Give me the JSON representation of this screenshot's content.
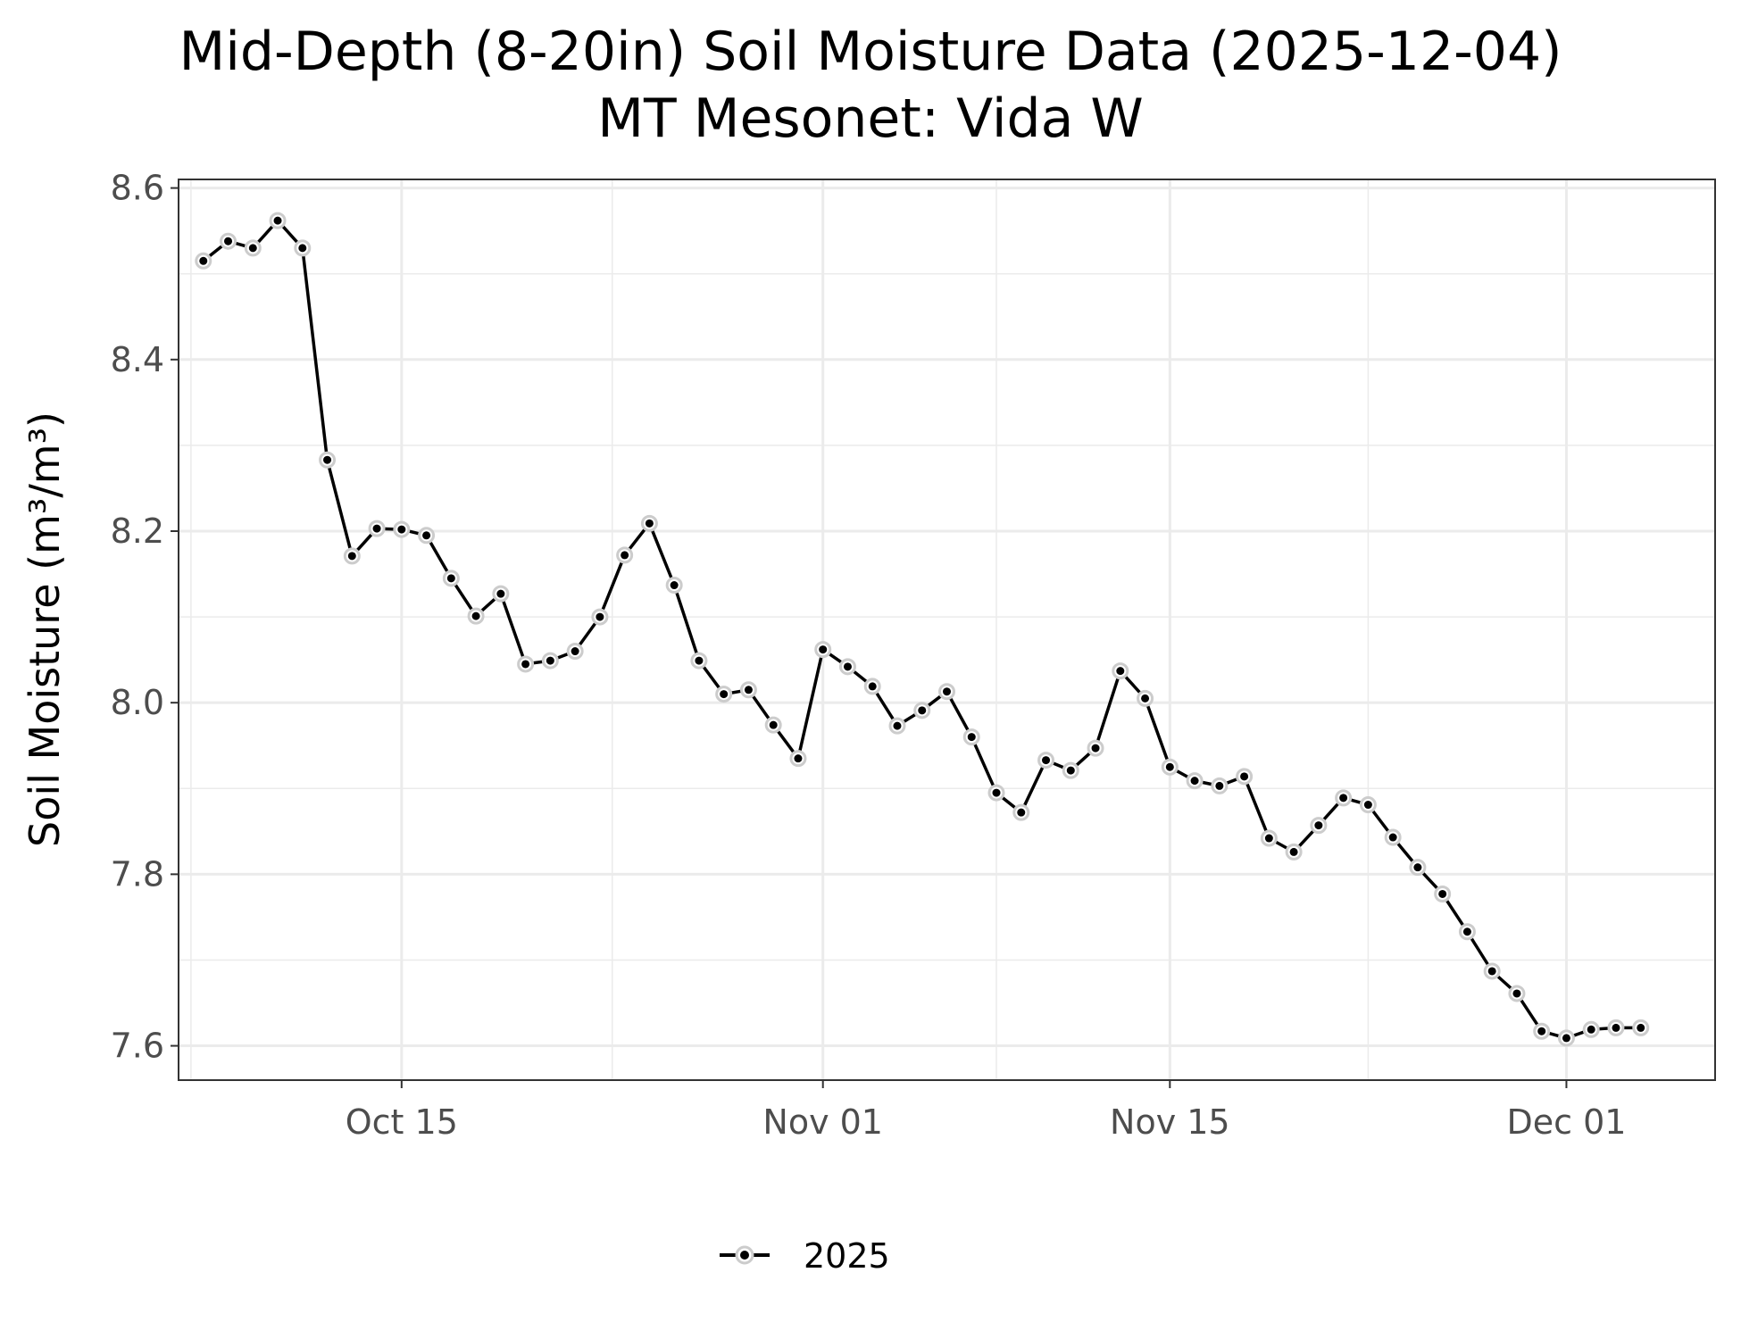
{
  "chart_data": {
    "type": "line",
    "title": "Mid-Depth (8-20in) Soil Moisture Data (2025-12-04)",
    "subtitle": "MT Mesonet: Vida W",
    "xlabel": "",
    "ylabel": "Soil Moisture (m³/m³)",
    "x_range": [
      "2025-10-06",
      "2025-12-07"
    ],
    "ylim": [
      7.56,
      8.61
    ],
    "y_ticks": [
      7.6,
      7.8,
      8.0,
      8.2,
      8.4,
      8.6
    ],
    "y_tick_labels": [
      "7.6",
      "7.8",
      "8.0",
      "8.2",
      "8.4",
      "8.6"
    ],
    "x_ticks": [
      "2025-10-15",
      "2025-11-01",
      "2025-11-15",
      "2025-12-01"
    ],
    "x_tick_labels": [
      "Oct 15",
      "Nov 01",
      "Nov 15",
      "Dec 01"
    ],
    "grid": true,
    "legend_position": "bottom",
    "series": [
      {
        "name": "2025",
        "color": "#000000",
        "x": [
          "2025-10-07",
          "2025-10-08",
          "2025-10-09",
          "2025-10-10",
          "2025-10-11",
          "2025-10-12",
          "2025-10-13",
          "2025-10-14",
          "2025-10-15",
          "2025-10-16",
          "2025-10-17",
          "2025-10-18",
          "2025-10-19",
          "2025-10-20",
          "2025-10-21",
          "2025-10-22",
          "2025-10-23",
          "2025-10-24",
          "2025-10-25",
          "2025-10-26",
          "2025-10-27",
          "2025-10-28",
          "2025-10-29",
          "2025-10-30",
          "2025-10-31",
          "2025-11-01",
          "2025-11-02",
          "2025-11-03",
          "2025-11-04",
          "2025-11-05",
          "2025-11-06",
          "2025-11-07",
          "2025-11-08",
          "2025-11-09",
          "2025-11-10",
          "2025-11-11",
          "2025-11-12",
          "2025-11-13",
          "2025-11-14",
          "2025-11-15",
          "2025-11-16",
          "2025-11-17",
          "2025-11-18",
          "2025-11-19",
          "2025-11-20",
          "2025-11-21",
          "2025-11-22",
          "2025-11-23",
          "2025-11-24",
          "2025-11-25",
          "2025-11-26",
          "2025-11-27",
          "2025-11-28",
          "2025-11-29",
          "2025-11-30",
          "2025-12-01",
          "2025-12-02",
          "2025-12-03",
          "2025-12-04"
        ],
        "y": [
          8.515,
          8.538,
          8.53,
          8.562,
          8.53,
          8.283,
          8.171,
          8.203,
          8.202,
          8.195,
          8.145,
          8.101,
          8.127,
          8.045,
          8.049,
          8.06,
          8.1,
          8.172,
          8.209,
          8.137,
          8.049,
          8.01,
          8.015,
          7.974,
          7.935,
          8.062,
          8.042,
          8.019,
          7.973,
          7.991,
          8.013,
          7.96,
          7.895,
          7.872,
          7.933,
          7.921,
          7.947,
          8.037,
          8.005,
          7.925,
          7.909,
          7.903,
          7.914,
          7.842,
          7.826,
          7.857,
          7.889,
          7.881,
          7.843,
          7.808,
          7.777,
          7.733,
          7.687,
          7.661,
          7.617,
          7.609,
          7.619,
          7.621,
          7.621
        ]
      }
    ]
  }
}
